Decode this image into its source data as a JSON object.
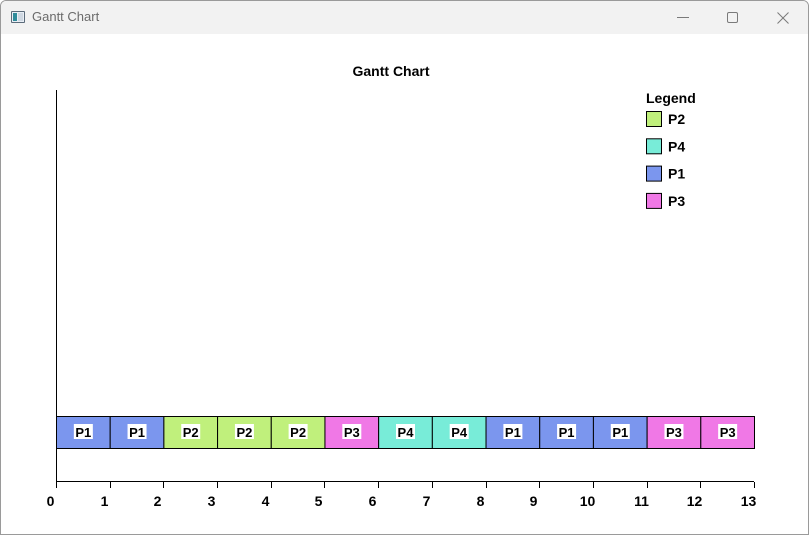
{
  "window": {
    "title": "Gantt Chart"
  },
  "chart_data": {
    "type": "bar",
    "title": "Gantt Chart",
    "xlim": [
      0,
      13
    ],
    "xticks": [
      "0",
      "1",
      "2",
      "3",
      "4",
      "5",
      "6",
      "7",
      "8",
      "9",
      "10",
      "11",
      "12",
      "13"
    ],
    "segments": [
      {
        "label": "P1",
        "start": 0,
        "end": 1
      },
      {
        "label": "P1",
        "start": 1,
        "end": 2
      },
      {
        "label": "P2",
        "start": 2,
        "end": 3
      },
      {
        "label": "P2",
        "start": 3,
        "end": 4
      },
      {
        "label": "P2",
        "start": 4,
        "end": 5
      },
      {
        "label": "P3",
        "start": 5,
        "end": 6
      },
      {
        "label": "P4",
        "start": 6,
        "end": 7
      },
      {
        "label": "P4",
        "start": 7,
        "end": 8
      },
      {
        "label": "P1",
        "start": 8,
        "end": 9
      },
      {
        "label": "P1",
        "start": 9,
        "end": 10
      },
      {
        "label": "P1",
        "start": 10,
        "end": 11
      },
      {
        "label": "P3",
        "start": 11,
        "end": 12
      },
      {
        "label": "P3",
        "start": 12,
        "end": 13
      }
    ],
    "legend": {
      "title": "Legend",
      "position": "top-right",
      "items": [
        {
          "name": "P2",
          "color": "#c0f07c"
        },
        {
          "name": "P4",
          "color": "#78ecd8"
        },
        {
          "name": "P1",
          "color": "#7b96ee"
        },
        {
          "name": "P3",
          "color": "#f078e6"
        }
      ]
    }
  }
}
